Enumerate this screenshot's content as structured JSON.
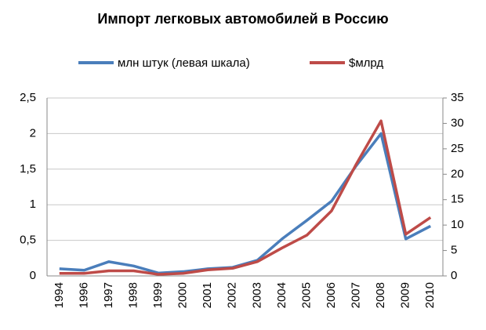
{
  "chart_data": {
    "type": "line",
    "title": "Импорт легковых автомобилей в Россию",
    "categories": [
      "1994",
      "1996",
      "1997",
      "1998",
      "1999",
      "2000",
      "2001",
      "2002",
      "2003",
      "2004",
      "2005",
      "2006",
      "2007",
      "2008",
      "2009",
      "2010"
    ],
    "series": [
      {
        "name": "млн штук (левая шкала)",
        "color": "#4a7ebb",
        "values": [
          0.1,
          0.08,
          0.2,
          0.14,
          0.04,
          0.06,
          0.1,
          0.12,
          0.22,
          0.52,
          0.78,
          1.05,
          1.55,
          2.0,
          0.52,
          0.7
        ]
      },
      {
        "name": "$млрд",
        "color": "#be4b48",
        "axis": "y2",
        "values": [
          0.5,
          0.5,
          1,
          1,
          0.3,
          0.5,
          1.2,
          1.5,
          2.8,
          5.5,
          8,
          12.8,
          22,
          30.5,
          8.2,
          11.5
        ]
      }
    ],
    "ylim": [
      0,
      2.5
    ],
    "yticks": [
      0,
      {
        "value": 0.5,
        "label": "0,5"
      },
      1,
      {
        "value": 1.5,
        "label": "1,5"
      },
      2,
      {
        "value": 2.5,
        "label": "2,5"
      }
    ],
    "y2lim": [
      0,
      35
    ],
    "y2ticks": [
      0,
      5,
      10,
      15,
      20,
      25,
      30,
      35
    ],
    "grid": true,
    "legend": "top"
  }
}
